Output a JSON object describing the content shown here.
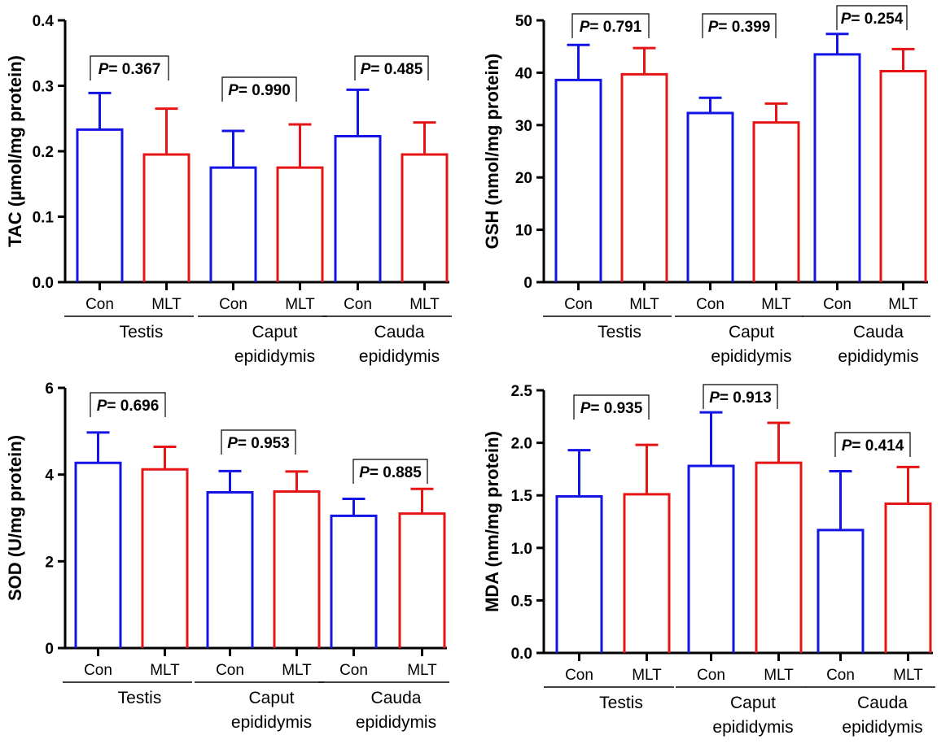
{
  "chart_data": [
    {
      "type": "bar",
      "ylabel": "TAC (µmol/mg protein)",
      "ylim": [
        0,
        0.4
      ],
      "yticks": [
        0.0,
        0.1,
        0.2,
        0.3,
        0.4
      ],
      "ytick_labels": [
        "0.0",
        "0.1",
        "0.2",
        "0.3",
        "0.4"
      ],
      "groups": [
        "Con",
        "MLT"
      ],
      "categories": [
        "Testis",
        "Caput\nepididymis",
        "Cauda\nepididymis"
      ],
      "series": [
        {
          "name": "Con",
          "color": "#1414e6",
          "values": [
            0.233,
            0.175,
            0.223
          ],
          "errors": [
            0.056,
            0.056,
            0.071
          ]
        },
        {
          "name": "MLT",
          "color": "#e61414",
          "values": [
            0.195,
            0.175,
            0.195
          ],
          "errors": [
            0.07,
            0.066,
            0.049
          ]
        }
      ],
      "p_labels": [
        "P",
        "P",
        "P"
      ],
      "p_values": [
        "= 0.367",
        "= 0.990",
        "= 0.485"
      ],
      "grid": false
    },
    {
      "type": "bar",
      "ylabel": "GSH (nmol/mg protein)",
      "ylim": [
        0,
        50
      ],
      "yticks": [
        0,
        10,
        20,
        30,
        40,
        50
      ],
      "ytick_labels": [
        "0",
        "10",
        "20",
        "30",
        "40",
        "50"
      ],
      "groups": [
        "Con",
        "MLT"
      ],
      "categories": [
        "Testis",
        "Caput\nepididymis",
        "Cauda\nepididymis"
      ],
      "series": [
        {
          "name": "Con",
          "color": "#1414e6",
          "values": [
            38.6,
            32.3,
            43.5
          ],
          "errors": [
            6.7,
            2.9,
            3.9
          ]
        },
        {
          "name": "MLT",
          "color": "#e61414",
          "values": [
            39.7,
            30.5,
            40.3
          ],
          "errors": [
            5.0,
            3.6,
            4.2
          ]
        }
      ],
      "p_labels": [
        "P",
        "P",
        "P"
      ],
      "p_values": [
        "= 0.791",
        "= 0.399",
        "= 0.254"
      ],
      "grid": false
    },
    {
      "type": "bar",
      "ylabel": "SOD (U/mg protein)",
      "ylim": [
        0,
        6
      ],
      "yticks": [
        0,
        2,
        4,
        6
      ],
      "ytick_labels": [
        "0",
        "2",
        "4",
        "6"
      ],
      "groups": [
        "Con",
        "MLT"
      ],
      "categories": [
        "Testis",
        "Caput\nepididymis",
        "Cauda\nepididymis"
      ],
      "series": [
        {
          "name": "Con",
          "color": "#1414e6",
          "values": [
            4.27,
            3.59,
            3.05
          ],
          "errors": [
            0.7,
            0.49,
            0.39
          ]
        },
        {
          "name": "MLT",
          "color": "#e61414",
          "values": [
            4.12,
            3.61,
            3.1
          ],
          "errors": [
            0.52,
            0.46,
            0.57
          ]
        }
      ],
      "p_labels": [
        "P",
        "P",
        "P"
      ],
      "p_values": [
        "= 0.696",
        "= 0.953",
        "= 0.885"
      ],
      "grid": false
    },
    {
      "type": "bar",
      "ylabel": "MDA (nm/mg protein)",
      "ylim": [
        0,
        2.5
      ],
      "yticks": [
        0.0,
        0.5,
        1.0,
        1.5,
        2.0,
        2.5
      ],
      "ytick_labels": [
        "0.0",
        "0.5",
        "1.0",
        "1.5",
        "2.0",
        "2.5"
      ],
      "groups": [
        "Con",
        "MLT"
      ],
      "categories": [
        "Testis",
        "Caput\nepididymis",
        "Cauda\nepididymis"
      ],
      "series": [
        {
          "name": "Con",
          "color": "#1414e6",
          "values": [
            1.49,
            1.78,
            1.17
          ],
          "errors": [
            0.44,
            0.51,
            0.56
          ]
        },
        {
          "name": "MLT",
          "color": "#e61414",
          "values": [
            1.51,
            1.81,
            1.42
          ],
          "errors": [
            0.47,
            0.38,
            0.35
          ]
        }
      ],
      "p_labels": [
        "P",
        "P",
        "P"
      ],
      "p_values": [
        "= 0.935",
        "= 0.913",
        "= 0.414"
      ],
      "grid": false
    }
  ]
}
